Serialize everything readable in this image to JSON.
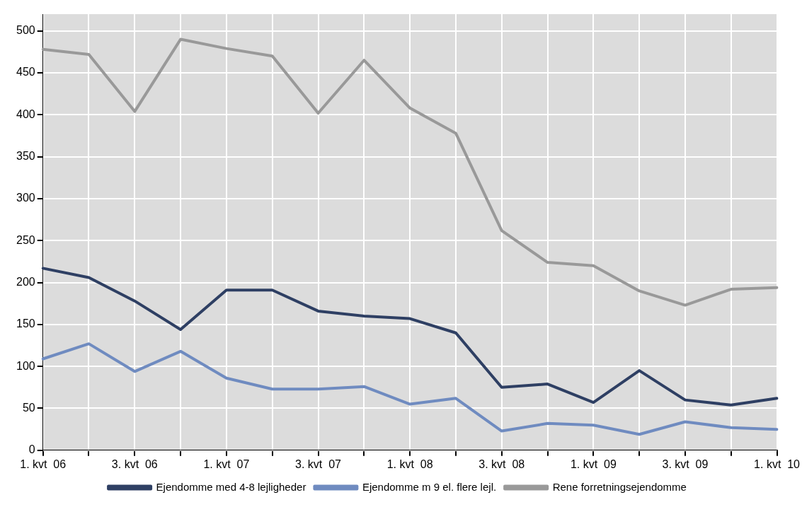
{
  "chart_data": {
    "type": "line",
    "categories": [
      "1. kvt  06",
      null,
      "3. kvt  06",
      null,
      "1. kvt  07",
      null,
      "3. kvt  07",
      null,
      "1. kvt  08",
      null,
      "3. kvt  08",
      null,
      "1. kvt  09",
      null,
      "3. kvt  09",
      null,
      "1. kvt  10"
    ],
    "series": [
      {
        "name": "Ejendomme med 4-8 lejligheder",
        "color": "#2e3f63",
        "values": [
          217,
          206,
          178,
          144,
          191,
          191,
          166,
          160,
          157,
          140,
          75,
          79,
          57,
          95,
          60,
          54,
          62
        ]
      },
      {
        "name": "Ejendomme m 9 el. flere lejl.",
        "color": "#6f8bc0",
        "values": [
          109,
          127,
          94,
          118,
          86,
          73,
          73,
          76,
          55,
          62,
          23,
          32,
          30,
          19,
          34,
          27,
          25
        ]
      },
      {
        "name": "Rene forretningsejendomme",
        "color": "#999999",
        "values": [
          478,
          472,
          404,
          490,
          479,
          470,
          402,
          465,
          408,
          378,
          262,
          224,
          220,
          190,
          173,
          192,
          194
        ]
      }
    ],
    "ylim": [
      0,
      520
    ],
    "yticks": [
      0,
      50,
      100,
      150,
      200,
      250,
      300,
      350,
      400,
      450,
      500
    ],
    "grid": true,
    "legend": "bottom",
    "marker": "none",
    "line_style": "solid"
  }
}
